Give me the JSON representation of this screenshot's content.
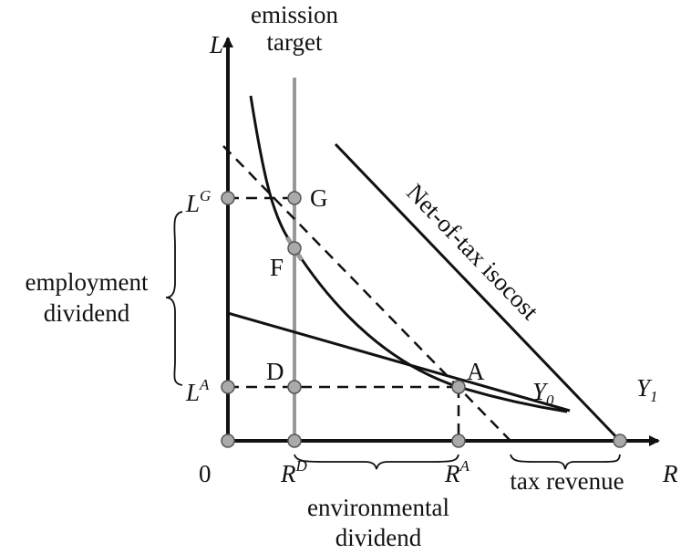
{
  "axes": {
    "y_label": "L",
    "x_label": "R",
    "origin": "0"
  },
  "labels": {
    "emission_target": [
      "emission",
      "target"
    ],
    "employment_dividend": [
      "employment",
      "dividend"
    ],
    "environmental_dividend": [
      "environmental",
      "dividend"
    ],
    "tax_revenue": "tax revenue",
    "isocost": "Net-of-tax isocost",
    "LG": {
      "base": "L",
      "sup": "G"
    },
    "LA": {
      "base": "L",
      "sup": "A"
    },
    "RD": {
      "base": "R",
      "sup": "D"
    },
    "RA": {
      "base": "R",
      "sup": "A"
    },
    "Y0": {
      "base": "Y",
      "sub": "0"
    },
    "Y1": {
      "base": "Y",
      "sub": "1"
    },
    "points": {
      "G": "G",
      "F": "F",
      "D": "D",
      "A": "A"
    }
  }
}
